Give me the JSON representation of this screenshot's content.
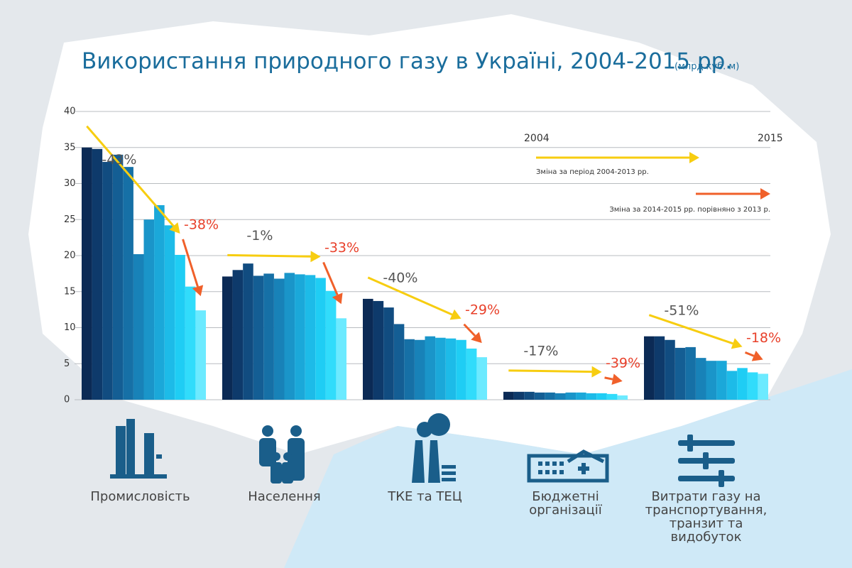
{
  "chart_data": {
    "type": "bar",
    "title": "Використання природного газу в Україні, 2004-2015 рр.",
    "subtitle": "(млрд куб. м)",
    "ylim": [
      0,
      40
    ],
    "yticks": [
      0,
      5,
      10,
      15,
      20,
      25,
      30,
      35,
      40
    ],
    "grid": true,
    "colors": [
      "#0b2a55",
      "#0e3a6b",
      "#114c80",
      "#145e94",
      "#1670a6",
      "#1882b8",
      "#1a95c9",
      "#1ba8d9",
      "#1dbbe8",
      "#1fcdf4",
      "#31dcfb",
      "#6ceaff"
    ],
    "arrow_colors": {
      "period": "#f7cd10",
      "recent": "#f0602a"
    },
    "legend": {
      "start": "2004",
      "end": "2015",
      "period": "Зміна за період 2004-2013 рр.",
      "recent": "Зміна за 2014-2015 рр. порівняно з 2013 р."
    },
    "groups": [
      {
        "label": [
          "Промисловість"
        ],
        "values": [
          35,
          34.8,
          33,
          34,
          32.3,
          20.2,
          25,
          27,
          24.2,
          20.1,
          15.7,
          12.4
        ],
        "change": [
          -43,
          -38
        ],
        "change_labels": [
          "-43%",
          "-38%"
        ]
      },
      {
        "label": [
          "Населення"
        ],
        "values": [
          17.1,
          18,
          18.9,
          17.2,
          17.5,
          16.8,
          17.6,
          17.4,
          17.3,
          16.9,
          15.1,
          11.3
        ],
        "change": [
          -1,
          -33
        ],
        "change_labels": [
          "-1%",
          "-33%"
        ]
      },
      {
        "label": [
          "ТКЕ та ТЕЦ"
        ],
        "values": [
          14,
          13.7,
          12.8,
          10.5,
          8.4,
          8.3,
          8.8,
          8.6,
          8.5,
          8.3,
          7.1,
          5.9
        ],
        "change": [
          -40,
          -29
        ],
        "change_labels": [
          "-40%",
          "-29%"
        ]
      },
      {
        "label": [
          "Бюджетні",
          "організації"
        ],
        "values": [
          1.1,
          1.1,
          1.1,
          1,
          1,
          0.9,
          1,
          1,
          0.9,
          0.9,
          0.8,
          0.6
        ],
        "change": [
          -17,
          -39
        ],
        "change_labels": [
          "-17%",
          "-39%"
        ]
      },
      {
        "label": [
          "Витрати газу на",
          "транспортування,",
          "транзит та",
          "видобуток"
        ],
        "values": [
          8.8,
          8.8,
          8.3,
          7.2,
          7.3,
          5.8,
          5.4,
          5.4,
          4,
          4.4,
          3.8,
          3.6
        ],
        "change": [
          -51,
          -18
        ],
        "change_labels": [
          "-51%",
          "-18%"
        ]
      }
    ]
  }
}
